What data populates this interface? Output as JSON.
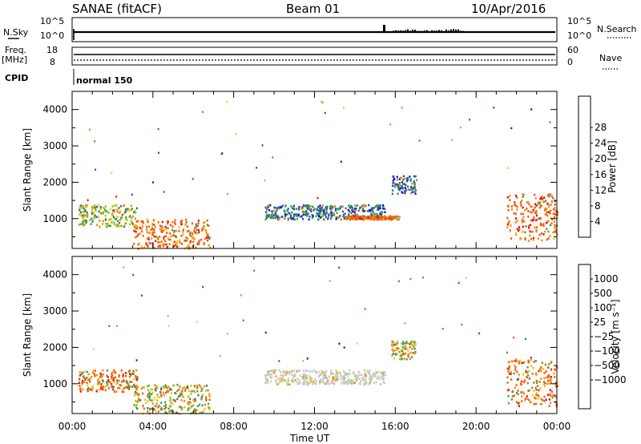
{
  "header": {
    "station": "SANAE (fitACF)",
    "beam": "Beam 01",
    "date": "10/Apr/2016"
  },
  "strip": {
    "nsky_label": "N.Sky",
    "nsky_ticks": [
      "10^5",
      "10^0"
    ],
    "nsearch_label": "N.Search",
    "nsearch_ticks": [
      "10^5",
      "10^0"
    ],
    "freq_label": "Freq.",
    "freq_unit": "[MHz]",
    "freq_ticks": [
      "18",
      "8"
    ],
    "nave_label": "Nave",
    "nave_ticks": [
      "60",
      "0"
    ],
    "cpid_label": "CPID",
    "cpid_value": "normal 150"
  },
  "colors": {
    "power": [
      "#1010e0",
      "#2850b0",
      "#2e7a6a",
      "#3aa04a",
      "#8ccf2a",
      "#f0c810",
      "#f08a10",
      "#f05a0a",
      "#e81010"
    ],
    "velocity": [
      "#e81010",
      "#f05a0a",
      "#f08a10",
      "#f0c020",
      "#c8c8c8",
      "#8ccf2a",
      "#3aa04a",
      "#2e7a6a",
      "#2050b0",
      "#1010e0"
    ]
  },
  "chart_data": [
    {
      "type": "heatmap",
      "panel": "power",
      "xlabel": "Time UT",
      "ylabel": "Slant Range [km]",
      "xlim": [
        0,
        24
      ],
      "ylim": [
        180,
        4500
      ],
      "x_ticks": [
        "00:00",
        "04:00",
        "08:00",
        "12:00",
        "16:00",
        "20:00",
        "00:00"
      ],
      "y_ticks": [
        1000,
        2000,
        3000,
        4000
      ],
      "colorbar_label": "Power [dB]",
      "colorbar_ticks": [
        "4",
        "8",
        "12",
        "16",
        "20",
        "24",
        "28"
      ],
      "scatter_regions": [
        {
          "t": [
            0.3,
            3.2
          ],
          "r": [
            800,
            1400
          ],
          "level": "mid-high"
        },
        {
          "t": [
            3.0,
            6.8
          ],
          "r": [
            200,
            1000
          ],
          "level": "high"
        },
        {
          "t": [
            9.5,
            15.5
          ],
          "r": [
            1000,
            1400
          ],
          "level": "mid"
        },
        {
          "t": [
            13.5,
            16.2
          ],
          "r": [
            1000,
            1100
          ],
          "level": "high"
        },
        {
          "t": [
            15.8,
            17.0
          ],
          "r": [
            1700,
            2200
          ],
          "level": "mid"
        },
        {
          "t": [
            21.5,
            24.0
          ],
          "r": [
            400,
            1700
          ],
          "level": "high"
        }
      ]
    },
    {
      "type": "heatmap",
      "panel": "velocity",
      "xlabel": "Time UT",
      "ylabel": "Slant Range [km]",
      "xlim": [
        0,
        24
      ],
      "ylim": [
        180,
        4500
      ],
      "x_ticks": [
        "00:00",
        "04:00",
        "08:00",
        "12:00",
        "16:00",
        "20:00",
        "00:00"
      ],
      "y_ticks": [
        1000,
        2000,
        3000,
        4000
      ],
      "colorbar_label": "Velocity [m s⁻¹]",
      "colorbar_ticks": [
        "1000",
        "500",
        "100",
        "25",
        "−25",
        "−100",
        "−500",
        "−1000"
      ],
      "scatter_regions": [
        {
          "t": [
            0.3,
            3.2
          ],
          "r": [
            800,
            1400
          ],
          "level": "negative"
        },
        {
          "t": [
            3.0,
            6.8
          ],
          "r": [
            200,
            1000
          ],
          "level": "mixed"
        },
        {
          "t": [
            9.5,
            15.5
          ],
          "r": [
            1000,
            1400
          ],
          "level": "near-zero"
        },
        {
          "t": [
            15.8,
            17.0
          ],
          "r": [
            1700,
            2200
          ],
          "level": "mixed"
        },
        {
          "t": [
            21.5,
            24.0
          ],
          "r": [
            400,
            1700
          ],
          "level": "negative"
        }
      ]
    }
  ]
}
